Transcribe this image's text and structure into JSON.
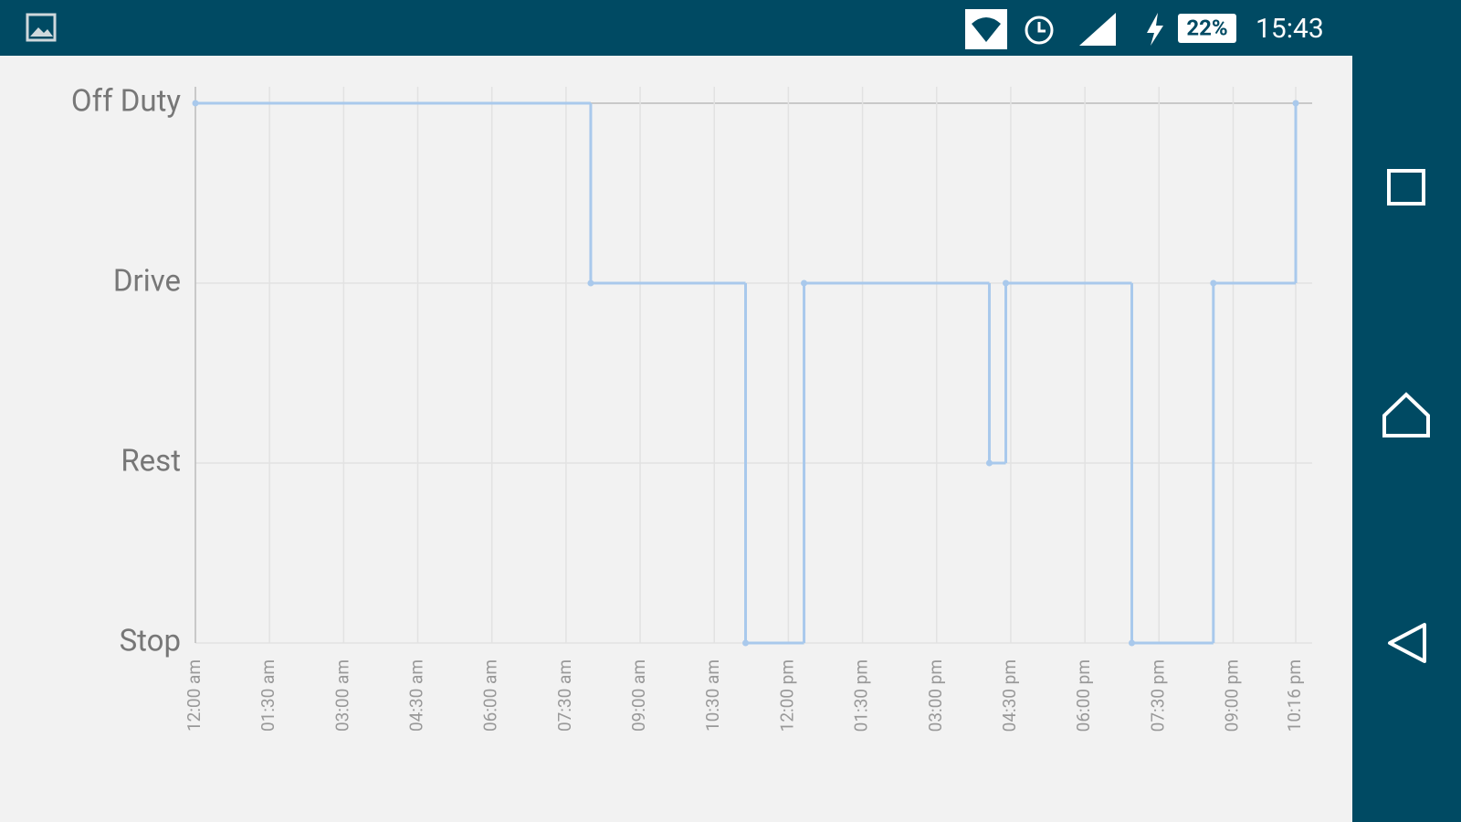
{
  "status_bar": {
    "battery": "22%",
    "time": "15:43"
  },
  "chart_data": {
    "type": "line",
    "step": true,
    "color": "#a9c9ec",
    "grid": true,
    "x": [
      0,
      480,
      668,
      739,
      964,
      984,
      1137,
      1236,
      1336
    ],
    "values": [
      3,
      2,
      0,
      2,
      1,
      2,
      0,
      2,
      3
    ],
    "xlim": [
      0,
      1336
    ],
    "ylim": [
      0,
      3
    ],
    "xticks": [
      {
        "value": 0,
        "label": "12:00 am"
      },
      {
        "value": 90,
        "label": "01:30 am"
      },
      {
        "value": 180,
        "label": "03:00 am"
      },
      {
        "value": 270,
        "label": "04:30 am"
      },
      {
        "value": 360,
        "label": "06:00 am"
      },
      {
        "value": 450,
        "label": "07:30 am"
      },
      {
        "value": 540,
        "label": "09:00 am"
      },
      {
        "value": 630,
        "label": "10:30 am"
      },
      {
        "value": 720,
        "label": "12:00 pm"
      },
      {
        "value": 810,
        "label": "01:30 pm"
      },
      {
        "value": 900,
        "label": "03:00 pm"
      },
      {
        "value": 990,
        "label": "04:30 pm"
      },
      {
        "value": 1080,
        "label": "06:00 pm"
      },
      {
        "value": 1170,
        "label": "07:30 pm"
      },
      {
        "value": 1260,
        "label": "09:00 pm"
      },
      {
        "value": 1336,
        "label": "10:16 pm"
      }
    ],
    "yticks": [
      {
        "value": 0,
        "label": "Stop"
      },
      {
        "value": 1,
        "label": "Rest"
      },
      {
        "value": 2,
        "label": "Drive"
      },
      {
        "value": 3,
        "label": "Off Duty"
      }
    ]
  }
}
